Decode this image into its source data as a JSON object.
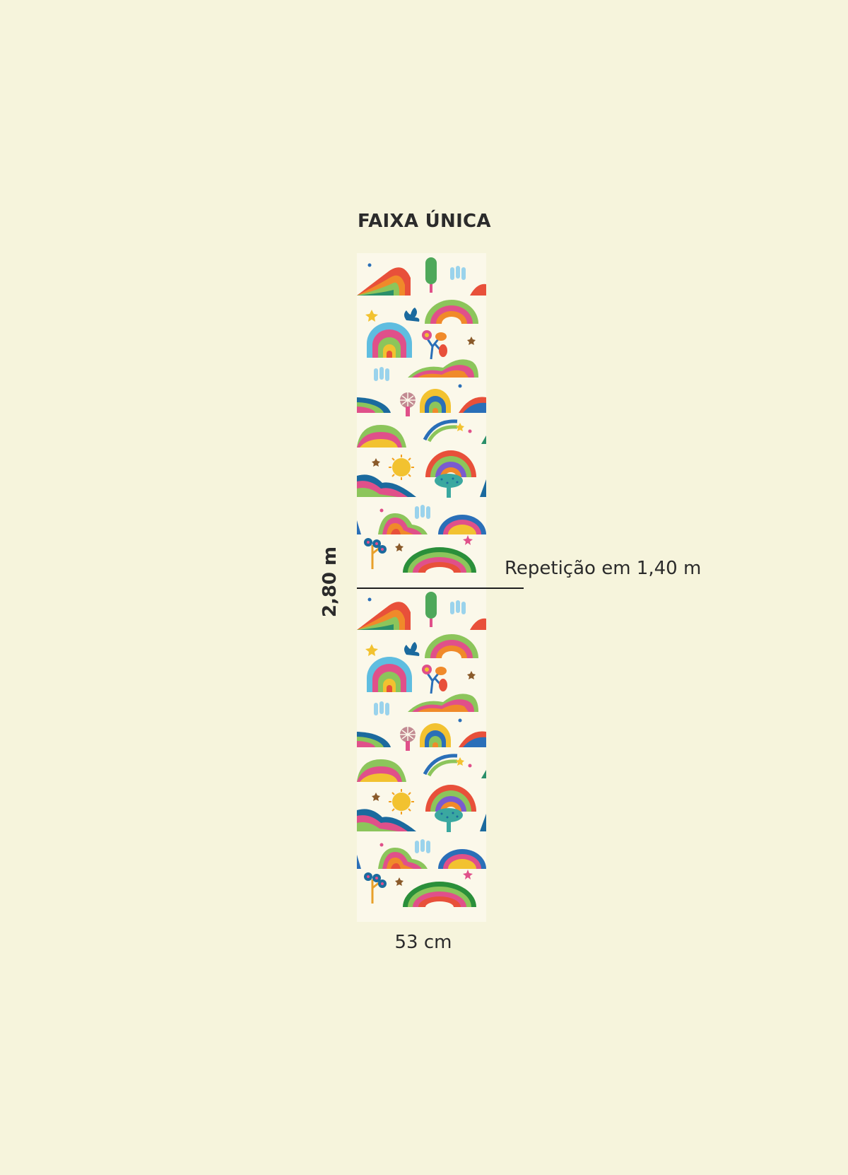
{
  "title": "FAIXA ÚNICA",
  "height_label": "2,80 m",
  "width_label": "53 cm",
  "repeat_label": "Repetição em 1,40 m",
  "colors": {
    "background": "#f6f4dc",
    "strip_background": "#fbf8ea",
    "text": "#2b2b2b"
  }
}
